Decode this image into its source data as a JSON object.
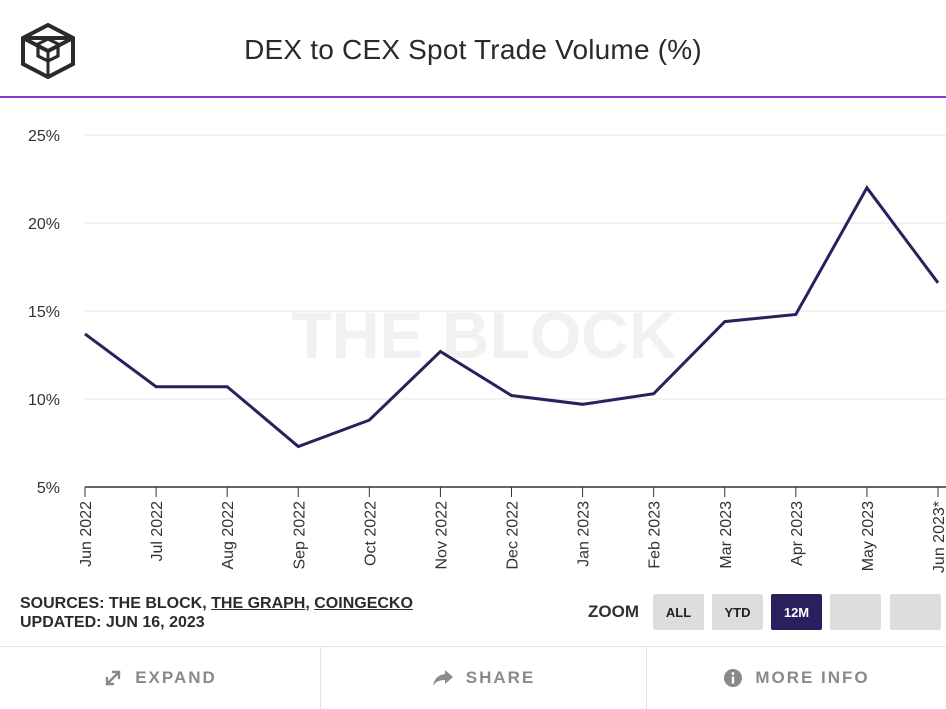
{
  "header": {
    "title": "DEX to CEX Spot Trade Volume (%)",
    "logo_icon": "the-block-cube-logo"
  },
  "watermark": "THE BLOCK",
  "chart_data": {
    "type": "line",
    "title": "DEX to CEX Spot Trade Volume (%)",
    "categories": [
      "Jun 2022",
      "Jul 2022",
      "Aug 2022",
      "Sep 2022",
      "Oct 2022",
      "Nov 2022",
      "Dec 2022",
      "Jan 2023",
      "Feb 2023",
      "Mar 2023",
      "Apr 2023",
      "May 2023",
      "Jun 2023*"
    ],
    "series": [
      {
        "values": [
          13.7,
          10.7,
          10.7,
          7.3,
          8.8,
          12.7,
          10.2,
          9.7,
          10.3,
          14.4,
          14.8,
          22.0,
          16.6
        ]
      }
    ],
    "ylim": [
      5,
      25
    ],
    "yticks": [
      5,
      10,
      15,
      20,
      25
    ],
    "ytick_labels": [
      "5%",
      "10%",
      "15%",
      "20%",
      "25%"
    ],
    "grid": true,
    "line_color": "#2b1f5e"
  },
  "meta": {
    "sources_prefix": "SOURCES: THE BLOCK, ",
    "source_graph": "THE GRAPH",
    "comma": ", ",
    "source_coingecko": "COINGECKO",
    "updated": "UPDATED: JUN 16, 2023"
  },
  "zoom": {
    "label": "ZOOM",
    "buttons": [
      {
        "label": "ALL",
        "active": false
      },
      {
        "label": "YTD",
        "active": false
      },
      {
        "label": "12M",
        "active": true
      },
      {
        "label": "",
        "active": false
      },
      {
        "label": "",
        "active": false
      }
    ]
  },
  "footer": {
    "expand": {
      "label": "EXPAND",
      "icon": "expand-arrows-icon"
    },
    "share": {
      "label": "SHARE",
      "icon": "share-arrow-icon"
    },
    "more_info": {
      "label": "MORE INFO",
      "icon": "info-circle-icon"
    }
  },
  "colors": {
    "accent_rule": "#8a3ad0",
    "active_button": "#2b1f5e",
    "inactive_button": "#dddddd"
  }
}
